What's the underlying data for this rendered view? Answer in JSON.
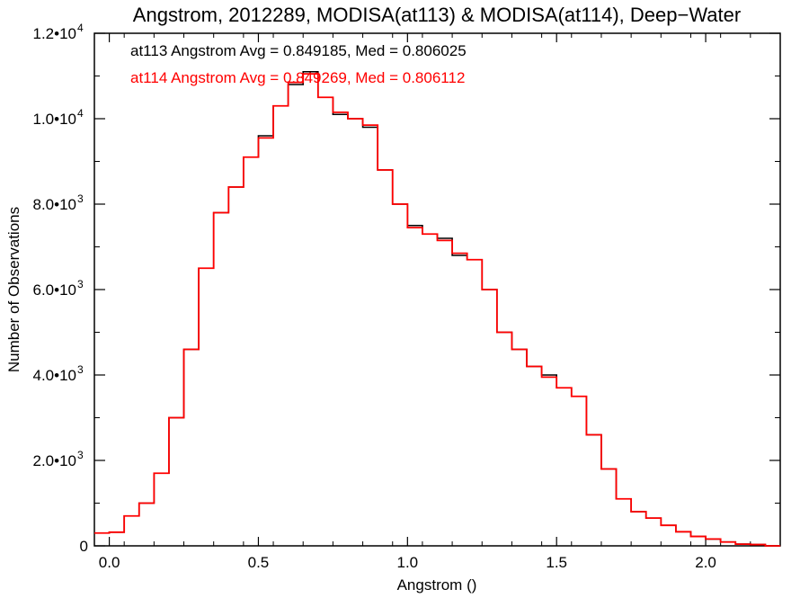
{
  "chart_data": {
    "type": "line",
    "step": true,
    "title": "Angstrom, 2012289, MODISA(at113) & MODISA(at114), Deep−Water",
    "xlabel": "Angstrom ()",
    "ylabel": "Number of Observations",
    "xlim": [
      -0.05,
      2.25
    ],
    "ylim": [
      0,
      12000
    ],
    "grid": false,
    "x_ticks": [
      {
        "value": 0.0,
        "label": "0.0"
      },
      {
        "value": 0.5,
        "label": "0.5"
      },
      {
        "value": 1.0,
        "label": "1.0"
      },
      {
        "value": 1.5,
        "label": "1.5"
      },
      {
        "value": 2.0,
        "label": "2.0"
      }
    ],
    "y_ticks": [
      {
        "value": 0,
        "mantissa": "0",
        "exp": ""
      },
      {
        "value": 2000,
        "mantissa": "2.0•10",
        "exp": "3"
      },
      {
        "value": 4000,
        "mantissa": "4.0•10",
        "exp": "3"
      },
      {
        "value": 6000,
        "mantissa": "6.0•10",
        "exp": "3"
      },
      {
        "value": 8000,
        "mantissa": "8.0•10",
        "exp": "3"
      },
      {
        "value": 10000,
        "mantissa": "1.0•10",
        "exp": "4"
      },
      {
        "value": 12000,
        "mantissa": "1.2•10",
        "exp": "4"
      }
    ],
    "annotations": [
      {
        "text": "at113 Angstrom Avg = 0.849185, Med = 0.806025",
        "color": "#000000"
      },
      {
        "text": "at114 Angstrom Avg = 0.849269, Med = 0.806112",
        "color": "#ff0000"
      }
    ],
    "series": [
      {
        "color": "#000000",
        "x": [
          -0.05,
          0.0,
          0.05,
          0.1,
          0.15,
          0.2,
          0.25,
          0.3,
          0.35,
          0.4,
          0.45,
          0.5,
          0.55,
          0.6,
          0.65,
          0.7,
          0.75,
          0.8,
          0.85,
          0.9,
          0.95,
          1.0,
          1.05,
          1.1,
          1.15,
          1.2,
          1.25,
          1.3,
          1.35,
          1.4,
          1.45,
          1.5,
          1.55,
          1.6,
          1.65,
          1.7,
          1.75,
          1.8,
          1.85,
          1.9,
          1.95,
          2.0,
          2.05,
          2.1,
          2.15,
          2.2,
          2.25
        ],
        "y": [
          300,
          320,
          700,
          1000,
          1700,
          3000,
          4600,
          6500,
          7800,
          8400,
          9100,
          9600,
          10300,
          10800,
          11100,
          10500,
          10100,
          10000,
          9800,
          8800,
          8000,
          7500,
          7300,
          7200,
          6800,
          6700,
          6000,
          5000,
          4600,
          4200,
          4000,
          3700,
          3500,
          2600,
          1800,
          1100,
          800,
          650,
          480,
          330,
          220,
          160,
          90,
          40,
          30,
          0,
          0
        ]
      },
      {
        "color": "#ff0000",
        "x": [
          -0.05,
          0.0,
          0.05,
          0.1,
          0.15,
          0.2,
          0.25,
          0.3,
          0.35,
          0.4,
          0.45,
          0.5,
          0.55,
          0.6,
          0.65,
          0.7,
          0.75,
          0.8,
          0.85,
          0.9,
          0.95,
          1.0,
          1.05,
          1.1,
          1.15,
          1.2,
          1.25,
          1.3,
          1.35,
          1.4,
          1.45,
          1.5,
          1.55,
          1.6,
          1.65,
          1.7,
          1.75,
          1.8,
          1.85,
          1.9,
          1.95,
          2.0,
          2.05,
          2.1,
          2.15,
          2.2,
          2.25
        ],
        "y": [
          300,
          320,
          700,
          1000,
          1700,
          3000,
          4600,
          6500,
          7800,
          8400,
          9100,
          9550,
          10300,
          10850,
          11050,
          10500,
          10150,
          10000,
          9850,
          8800,
          8000,
          7450,
          7300,
          7150,
          6850,
          6700,
          6000,
          5000,
          4600,
          4200,
          3950,
          3700,
          3500,
          2600,
          1800,
          1100,
          800,
          650,
          480,
          330,
          220,
          160,
          90,
          40,
          30,
          0,
          0
        ]
      }
    ]
  }
}
